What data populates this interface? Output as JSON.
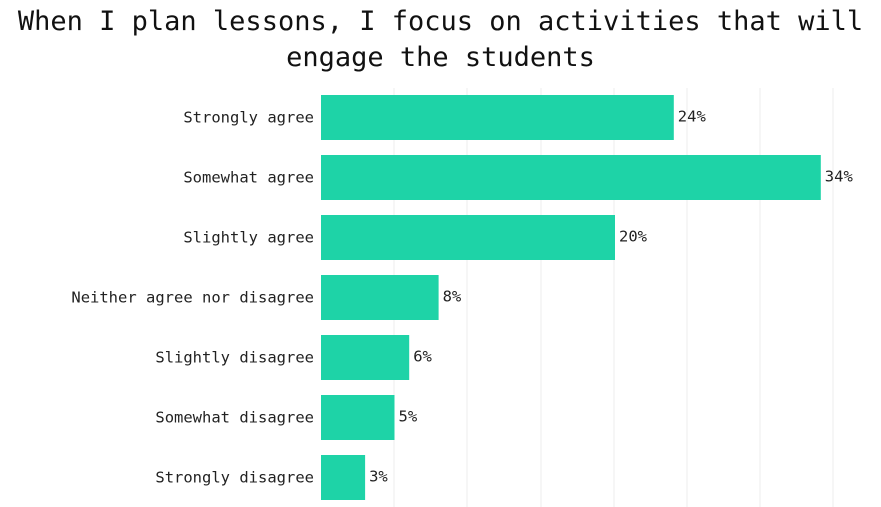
{
  "chart_data": {
    "type": "bar",
    "orientation": "horizontal",
    "title": "When I plan lessons, I focus on activities that will engage the students",
    "categories": [
      "Strongly agree",
      "Somewhat agree",
      "Slightly agree",
      "Neither agree nor disagree",
      "Slightly disagree",
      "Somewhat disagree",
      "Strongly disagree"
    ],
    "values": [
      24,
      34,
      20,
      8,
      6,
      5,
      3
    ],
    "value_labels": [
      "24%",
      "34%",
      "20%",
      "8%",
      "6%",
      "5%",
      "3%"
    ],
    "xlim": [
      0,
      35
    ],
    "bar_color": "#1ed3a7",
    "grid": true
  }
}
